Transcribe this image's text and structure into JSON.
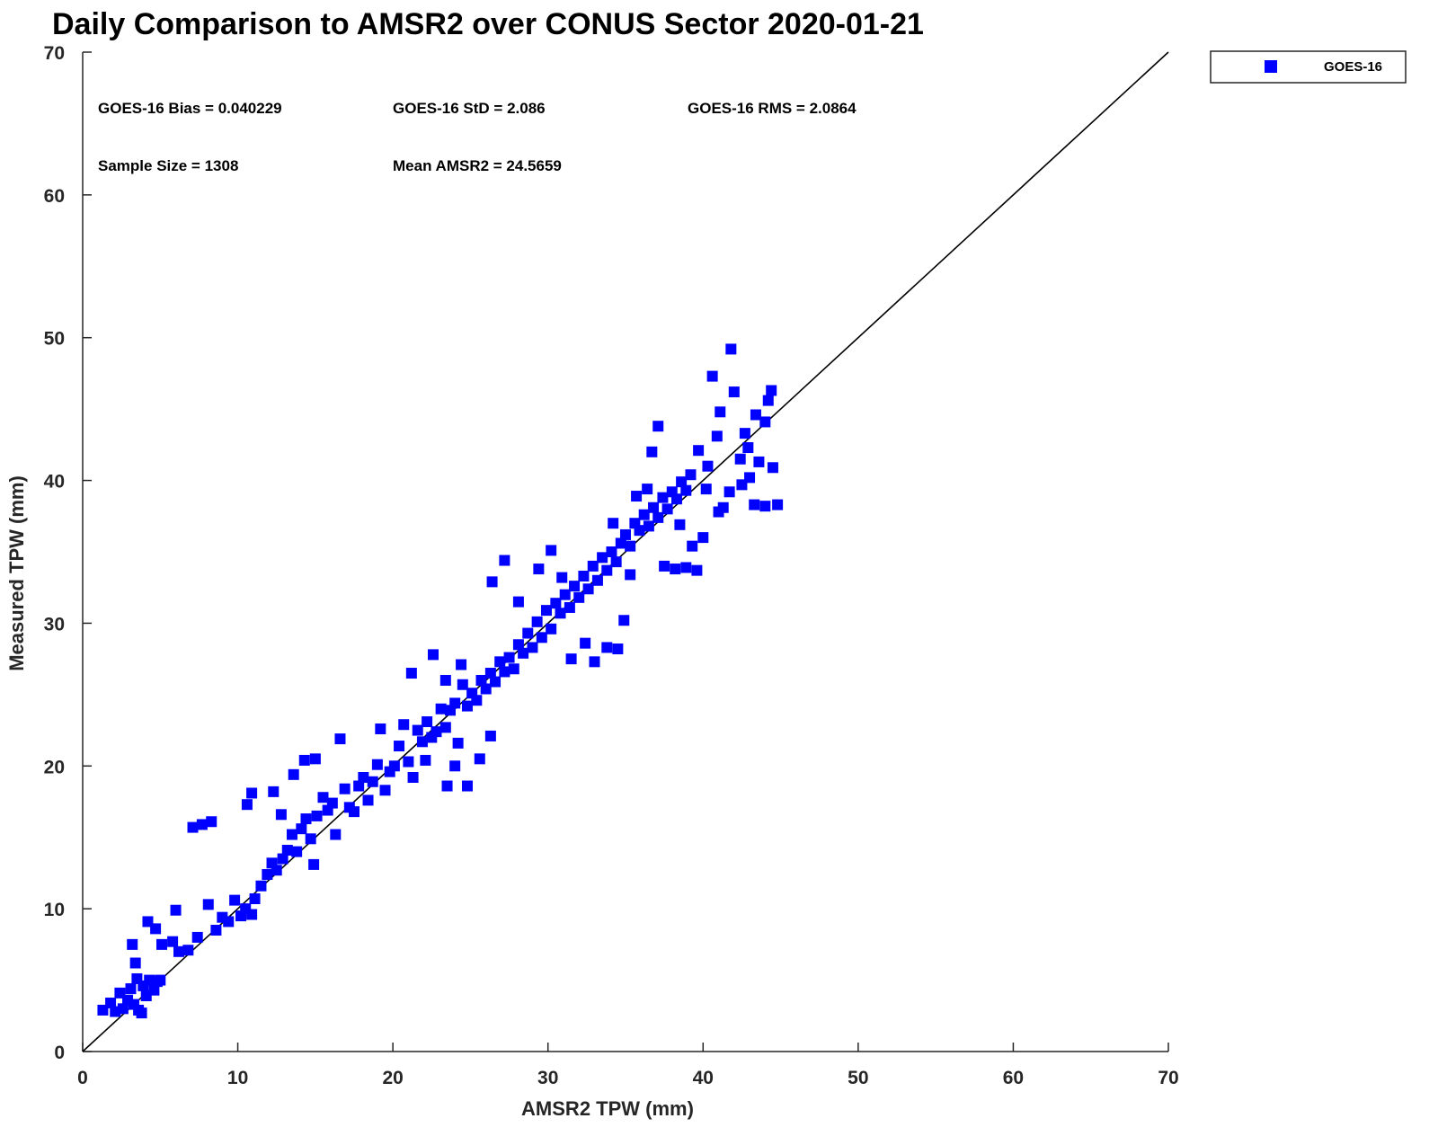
{
  "chart_data": {
    "type": "scatter",
    "title": "Daily Comparison to AMSR2 over CONUS Sector 2020-01-21",
    "xlabel": "AMSR2 TPW (mm)",
    "ylabel": "Measured TPW (mm)",
    "xlim": [
      0,
      70
    ],
    "ylim": [
      0,
      70
    ],
    "xticks": [
      "0",
      "10",
      "20",
      "30",
      "40",
      "50",
      "60",
      "70"
    ],
    "yticks": [
      "0",
      "10",
      "20",
      "30",
      "40",
      "50",
      "60",
      "70"
    ],
    "grid": false,
    "legend_position": "top-right, outside plot",
    "reference_line": {
      "x": [
        0,
        70
      ],
      "y": [
        0,
        70
      ],
      "color": "#000000"
    },
    "annotations": [
      "GOES-16 Bias = 0.040229",
      "GOES-16 StD = 2.086",
      "GOES-16 RMS = 2.0864",
      "Sample Size = 1308",
      "Mean AMSR2 = 24.5659"
    ],
    "series": [
      {
        "name": "GOES-16",
        "color": "#0000ff",
        "marker": "square",
        "points": [
          [
            1.3,
            2.9
          ],
          [
            1.8,
            3.4
          ],
          [
            2.1,
            2.8
          ],
          [
            2.4,
            4.1
          ],
          [
            2.6,
            3.0
          ],
          [
            2.9,
            3.6
          ],
          [
            3.1,
            4.4
          ],
          [
            3.3,
            3.3
          ],
          [
            3.5,
            5.1
          ],
          [
            3.6,
            2.9
          ],
          [
            3.9,
            4.6
          ],
          [
            4.1,
            3.9
          ],
          [
            4.3,
            5.0
          ],
          [
            4.6,
            4.3
          ],
          [
            4.8,
            4.9
          ],
          [
            5.0,
            5.0
          ],
          [
            3.8,
            2.7
          ],
          [
            3.4,
            6.2
          ],
          [
            3.2,
            7.5
          ],
          [
            4.2,
            9.1
          ],
          [
            4.7,
            8.6
          ],
          [
            5.1,
            7.5
          ],
          [
            5.8,
            7.7
          ],
          [
            6.2,
            7.0
          ],
          [
            6.8,
            7.1
          ],
          [
            6.0,
            9.9
          ],
          [
            7.4,
            8.0
          ],
          [
            7.1,
            15.7
          ],
          [
            7.7,
            15.9
          ],
          [
            8.3,
            16.1
          ],
          [
            8.1,
            10.3
          ],
          [
            8.6,
            8.5
          ],
          [
            9.0,
            9.4
          ],
          [
            9.4,
            9.1
          ],
          [
            9.8,
            10.6
          ],
          [
            10.2,
            9.5
          ],
          [
            10.5,
            10.0
          ],
          [
            10.9,
            9.6
          ],
          [
            11.1,
            10.7
          ],
          [
            10.6,
            17.3
          ],
          [
            10.9,
            18.1
          ],
          [
            11.5,
            11.6
          ],
          [
            11.9,
            12.4
          ],
          [
            12.2,
            13.2
          ],
          [
            12.5,
            12.7
          ],
          [
            12.9,
            13.5
          ],
          [
            13.2,
            14.1
          ],
          [
            12.3,
            18.2
          ],
          [
            12.8,
            16.6
          ],
          [
            13.5,
            15.2
          ],
          [
            13.8,
            14.0
          ],
          [
            14.1,
            15.6
          ],
          [
            14.4,
            16.3
          ],
          [
            14.7,
            14.9
          ],
          [
            14.9,
            13.1
          ],
          [
            15.1,
            16.5
          ],
          [
            13.6,
            19.4
          ],
          [
            14.3,
            20.4
          ],
          [
            15.0,
            20.5
          ],
          [
            15.5,
            17.8
          ],
          [
            15.8,
            16.9
          ],
          [
            16.1,
            17.4
          ],
          [
            16.3,
            15.2
          ],
          [
            16.6,
            21.9
          ],
          [
            16.9,
            18.4
          ],
          [
            17.2,
            17.1
          ],
          [
            17.5,
            16.8
          ],
          [
            17.8,
            18.6
          ],
          [
            18.1,
            19.2
          ],
          [
            18.4,
            17.6
          ],
          [
            18.7,
            18.9
          ],
          [
            19.0,
            20.1
          ],
          [
            19.2,
            22.6
          ],
          [
            19.5,
            18.3
          ],
          [
            19.8,
            19.6
          ],
          [
            20.1,
            20.0
          ],
          [
            20.4,
            21.4
          ],
          [
            20.7,
            22.9
          ],
          [
            21.0,
            20.3
          ],
          [
            21.3,
            19.2
          ],
          [
            21.6,
            22.5
          ],
          [
            21.9,
            21.7
          ],
          [
            22.2,
            23.1
          ],
          [
            22.5,
            22.0
          ],
          [
            22.8,
            22.4
          ],
          [
            23.1,
            24.0
          ],
          [
            23.4,
            22.7
          ],
          [
            23.7,
            23.9
          ],
          [
            24.0,
            24.4
          ],
          [
            24.2,
            21.6
          ],
          [
            24.5,
            25.7
          ],
          [
            24.8,
            24.2
          ],
          [
            25.1,
            25.1
          ],
          [
            25.4,
            24.6
          ],
          [
            25.7,
            26.0
          ],
          [
            26.0,
            25.4
          ],
          [
            26.3,
            26.5
          ],
          [
            26.6,
            25.9
          ],
          [
            26.9,
            27.3
          ],
          [
            27.2,
            26.6
          ],
          [
            27.5,
            27.6
          ],
          [
            27.8,
            26.8
          ],
          [
            28.1,
            28.5
          ],
          [
            28.4,
            27.9
          ],
          [
            28.7,
            29.3
          ],
          [
            29.0,
            28.3
          ],
          [
            29.3,
            30.1
          ],
          [
            29.6,
            29.0
          ],
          [
            29.9,
            30.9
          ],
          [
            30.2,
            29.6
          ],
          [
            30.5,
            31.4
          ],
          [
            30.8,
            30.7
          ],
          [
            31.1,
            32.0
          ],
          [
            31.4,
            31.1
          ],
          [
            31.7,
            32.6
          ],
          [
            32.0,
            31.8
          ],
          [
            32.3,
            33.3
          ],
          [
            32.6,
            32.4
          ],
          [
            32.9,
            34.0
          ],
          [
            33.2,
            33.0
          ],
          [
            33.5,
            34.6
          ],
          [
            33.8,
            33.7
          ],
          [
            34.1,
            35.0
          ],
          [
            34.4,
            34.3
          ],
          [
            34.7,
            35.6
          ],
          [
            35.0,
            36.2
          ],
          [
            35.3,
            35.4
          ],
          [
            35.6,
            37.0
          ],
          [
            35.9,
            36.5
          ],
          [
            36.2,
            37.6
          ],
          [
            36.5,
            36.8
          ],
          [
            36.8,
            38.1
          ],
          [
            37.1,
            37.4
          ],
          [
            37.4,
            38.8
          ],
          [
            37.7,
            38.0
          ],
          [
            38.0,
            39.2
          ],
          [
            38.3,
            38.7
          ],
          [
            38.6,
            39.9
          ],
          [
            38.9,
            39.3
          ],
          [
            39.2,
            40.4
          ],
          [
            22.6,
            27.8
          ],
          [
            23.4,
            26.0
          ],
          [
            21.2,
            26.5
          ],
          [
            24.4,
            27.1
          ],
          [
            22.1,
            20.4
          ],
          [
            23.5,
            18.6
          ],
          [
            24.8,
            18.6
          ],
          [
            25.6,
            20.5
          ],
          [
            26.3,
            22.1
          ],
          [
            24.0,
            20.0
          ],
          [
            27.2,
            34.4
          ],
          [
            26.4,
            32.9
          ],
          [
            28.1,
            31.5
          ],
          [
            29.4,
            33.8
          ],
          [
            30.2,
            35.1
          ],
          [
            30.9,
            33.2
          ],
          [
            31.5,
            27.5
          ],
          [
            32.4,
            28.6
          ],
          [
            33.0,
            27.3
          ],
          [
            33.8,
            28.3
          ],
          [
            34.5,
            28.2
          ],
          [
            34.9,
            30.2
          ],
          [
            35.3,
            33.4
          ],
          [
            34.2,
            37.0
          ],
          [
            35.7,
            38.9
          ],
          [
            36.4,
            39.4
          ],
          [
            37.1,
            43.8
          ],
          [
            36.7,
            42.0
          ],
          [
            37.5,
            34.0
          ],
          [
            38.2,
            33.8
          ],
          [
            38.9,
            33.9
          ],
          [
            39.6,
            33.7
          ],
          [
            38.5,
            36.9
          ],
          [
            39.3,
            35.4
          ],
          [
            40.0,
            36.0
          ],
          [
            39.7,
            42.1
          ],
          [
            40.3,
            41.0
          ],
          [
            40.9,
            43.1
          ],
          [
            41.1,
            44.8
          ],
          [
            42.0,
            46.2
          ],
          [
            42.7,
            43.3
          ],
          [
            43.4,
            44.6
          ],
          [
            44.2,
            45.6
          ],
          [
            44.4,
            46.3
          ],
          [
            44.0,
            44.1
          ],
          [
            41.8,
            49.2
          ],
          [
            40.6,
            47.3
          ],
          [
            41.3,
            38.1
          ],
          [
            42.5,
            39.7
          ],
          [
            43.3,
            38.3
          ],
          [
            44.0,
            38.2
          ],
          [
            44.5,
            40.9
          ],
          [
            43.6,
            41.3
          ],
          [
            42.4,
            41.5
          ],
          [
            41.7,
            39.2
          ],
          [
            43.0,
            40.2
          ],
          [
            44.8,
            38.3
          ],
          [
            41.0,
            37.8
          ],
          [
            40.2,
            39.4
          ],
          [
            42.9,
            42.3
          ]
        ]
      }
    ]
  }
}
